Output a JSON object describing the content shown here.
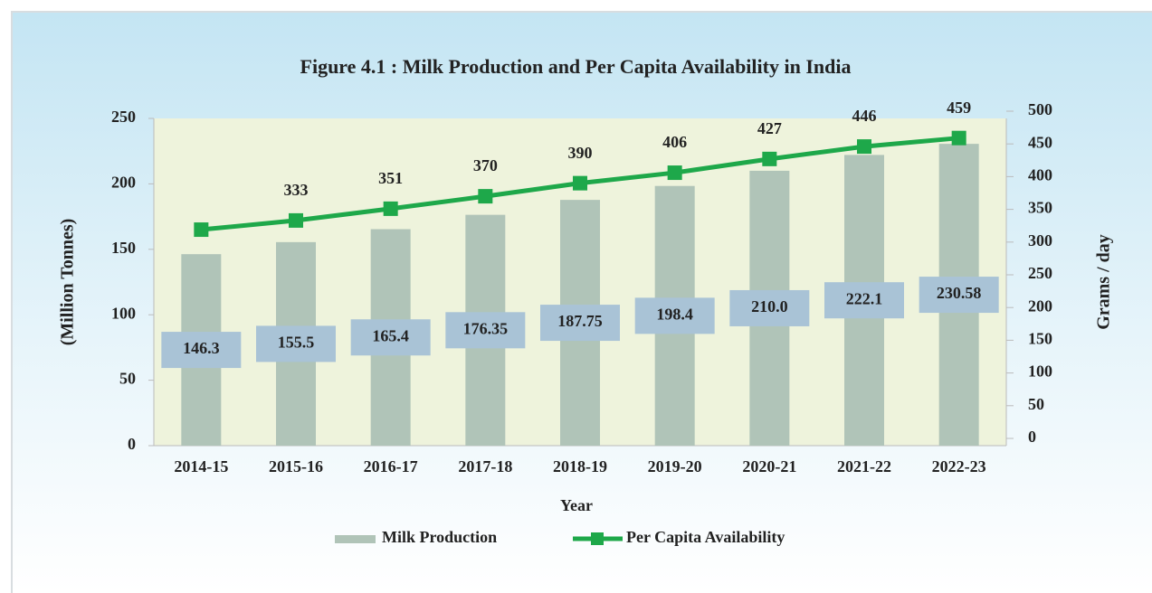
{
  "chart_data": {
    "type": "bar-line",
    "title": "Figure 4.1 : Milk Production and Per Capita Availability in India",
    "xlabel": "Year",
    "ylabel": "(Million Tonnes)",
    "y2label": "Grams / day",
    "categories": [
      "2014-15",
      "2015-16",
      "2016-17",
      "2017-18",
      "2018-19",
      "2019-20",
      "2020-21",
      "2021-22",
      "2022-23"
    ],
    "series": [
      {
        "name": "Milk Production",
        "type": "bar",
        "color": "#b0c4b8",
        "values": [
          146.3,
          155.5,
          165.4,
          176.35,
          187.75,
          198.4,
          210.0,
          222.1,
          230.58
        ],
        "value_labels": [
          "146.3",
          "155.5",
          "165.4",
          "176.35",
          "187.75",
          "198.4",
          "210.0",
          "222.1",
          "230.58"
        ]
      },
      {
        "name": "Per Capita Availability",
        "type": "line",
        "axis": "y2",
        "color": "#1ea84a",
        "values": [
          319,
          333,
          351,
          370,
          390,
          406,
          427,
          446,
          459
        ],
        "value_labels": [
          null,
          "333",
          "351",
          "370",
          "390",
          "406",
          "427",
          "446",
          "459"
        ]
      }
    ],
    "ylim": [
      0,
      250
    ],
    "yticks": [
      0,
      50,
      100,
      150,
      200,
      250
    ],
    "y2lim": [
      0,
      500
    ],
    "y2ticks": [
      0,
      50,
      100,
      150,
      200,
      250,
      300,
      350,
      400,
      450,
      500
    ]
  }
}
